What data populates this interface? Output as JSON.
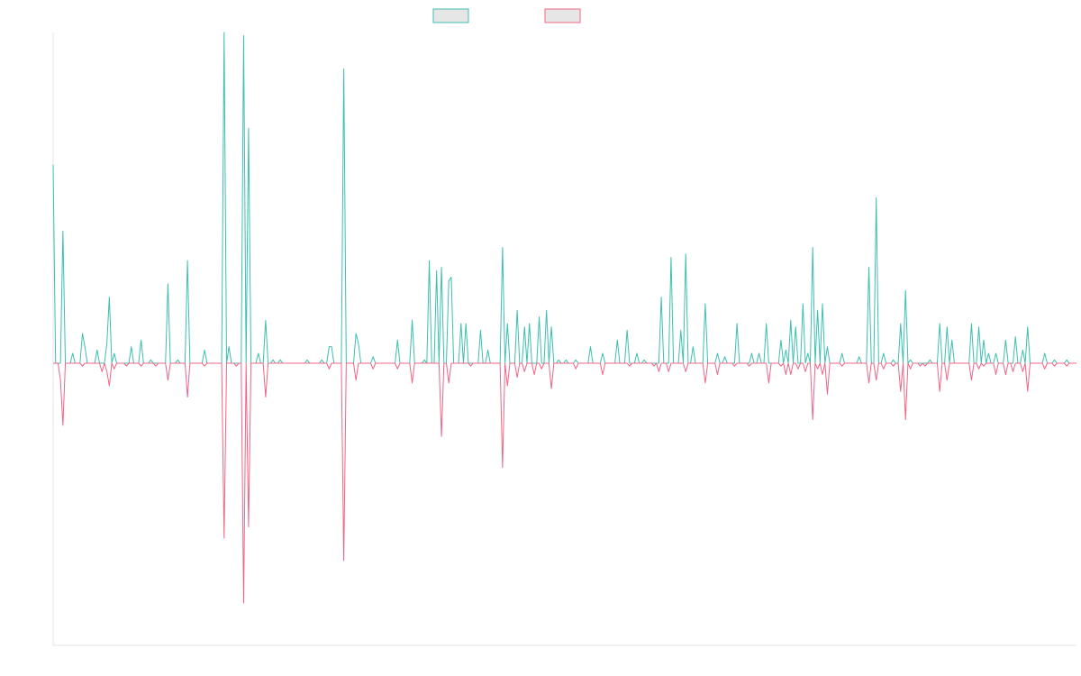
{
  "chart_data": {
    "type": "line",
    "title": "",
    "xlabel": "",
    "ylabel": "",
    "grid": false,
    "legend_position": "top-center",
    "ylim": [
      -100,
      100
    ],
    "x_count": 420,
    "series": [
      {
        "color": "#3dbfb0",
        "fill": "#e6e6e6",
        "spikes": [
          [
            0,
            60
          ],
          [
            4,
            40
          ],
          [
            8,
            3
          ],
          [
            12,
            9
          ],
          [
            13,
            5
          ],
          [
            18,
            4
          ],
          [
            22,
            6
          ],
          [
            23,
            20
          ],
          [
            25,
            3
          ],
          [
            32,
            5
          ],
          [
            36,
            7
          ],
          [
            40,
            1
          ],
          [
            47,
            24
          ],
          [
            51,
            1
          ],
          [
            55,
            31
          ],
          [
            62,
            4
          ],
          [
            70,
            100
          ],
          [
            72,
            5
          ],
          [
            78,
            99
          ],
          [
            80,
            71
          ],
          [
            84,
            3
          ],
          [
            87,
            13
          ],
          [
            90,
            1
          ],
          [
            93,
            1
          ],
          [
            104,
            1
          ],
          [
            110,
            1
          ],
          [
            113,
            5
          ],
          [
            114,
            5
          ],
          [
            119,
            89
          ],
          [
            124,
            9
          ],
          [
            125,
            6
          ],
          [
            131,
            2
          ],
          [
            141,
            7
          ],
          [
            147,
            13
          ],
          [
            152,
            1
          ],
          [
            154,
            31
          ],
          [
            157,
            28
          ],
          [
            159,
            29
          ],
          [
            162,
            25
          ],
          [
            163,
            26
          ],
          [
            167,
            12
          ],
          [
            169,
            12
          ],
          [
            175,
            10
          ],
          [
            178,
            4
          ],
          [
            184,
            35
          ],
          [
            186,
            12
          ],
          [
            190,
            16
          ],
          [
            193,
            11
          ],
          [
            195,
            12
          ],
          [
            199,
            14
          ],
          [
            202,
            16
          ],
          [
            204,
            11
          ],
          [
            207,
            1
          ],
          [
            210,
            1
          ],
          [
            214,
            1
          ],
          [
            220,
            5
          ],
          [
            225,
            3
          ],
          [
            231,
            7
          ],
          [
            235,
            10
          ],
          [
            239,
            3
          ],
          [
            242,
            1
          ],
          [
            249,
            20
          ],
          [
            253,
            32
          ],
          [
            257,
            10
          ],
          [
            259,
            33
          ],
          [
            262,
            5
          ],
          [
            267,
            18
          ],
          [
            272,
            3
          ],
          [
            275,
            2
          ],
          [
            280,
            12
          ],
          [
            286,
            3
          ],
          [
            289,
            3
          ],
          [
            292,
            12
          ],
          [
            298,
            7
          ],
          [
            300,
            4
          ],
          [
            302,
            13
          ],
          [
            304,
            11
          ],
          [
            307,
            18
          ],
          [
            309,
            3
          ],
          [
            311,
            35
          ],
          [
            313,
            16
          ],
          [
            315,
            18
          ],
          [
            317,
            5
          ],
          [
            323,
            3
          ],
          [
            330,
            2
          ],
          [
            334,
            29
          ],
          [
            337,
            50
          ],
          [
            340,
            3
          ],
          [
            344,
            1
          ],
          [
            347,
            12
          ],
          [
            349,
            22
          ],
          [
            351,
            1
          ],
          [
            359,
            1
          ],
          [
            363,
            12
          ],
          [
            366,
            11
          ],
          [
            368,
            7
          ],
          [
            376,
            12
          ],
          [
            379,
            11
          ],
          [
            381,
            7
          ],
          [
            383,
            3
          ],
          [
            386,
            3
          ],
          [
            390,
            7
          ],
          [
            394,
            8
          ],
          [
            397,
            4
          ],
          [
            399,
            11
          ],
          [
            406,
            3
          ],
          [
            410,
            1
          ],
          [
            415,
            1
          ]
        ]
      },
      {
        "color": "#f06587",
        "fill": "#e6e6e6",
        "spikes": [
          [
            3,
            -6
          ],
          [
            4,
            -22
          ],
          [
            12,
            -1
          ],
          [
            20,
            -3
          ],
          [
            22,
            -3
          ],
          [
            23,
            -8
          ],
          [
            25,
            -2
          ],
          [
            30,
            -1
          ],
          [
            36,
            -1
          ],
          [
            42,
            -1
          ],
          [
            47,
            -6
          ],
          [
            55,
            -12
          ],
          [
            62,
            -1
          ],
          [
            70,
            -62
          ],
          [
            75,
            -1
          ],
          [
            78,
            -85
          ],
          [
            80,
            -58
          ],
          [
            87,
            -12
          ],
          [
            113,
            -2
          ],
          [
            119,
            -70
          ],
          [
            124,
            -6
          ],
          [
            131,
            -2
          ],
          [
            141,
            -2
          ],
          [
            147,
            -7
          ],
          [
            159,
            -26
          ],
          [
            162,
            -7
          ],
          [
            171,
            -1
          ],
          [
            184,
            -37
          ],
          [
            186,
            -8
          ],
          [
            190,
            -5
          ],
          [
            193,
            -3
          ],
          [
            197,
            -4
          ],
          [
            200,
            -2
          ],
          [
            204,
            -9
          ],
          [
            214,
            -2
          ],
          [
            225,
            -4
          ],
          [
            236,
            -1
          ],
          [
            246,
            -1
          ],
          [
            248,
            -3
          ],
          [
            252,
            -3
          ],
          [
            259,
            -3
          ],
          [
            267,
            -7
          ],
          [
            272,
            -4
          ],
          [
            279,
            -1
          ],
          [
            285,
            -1
          ],
          [
            293,
            -7
          ],
          [
            298,
            -1
          ],
          [
            300,
            -4
          ],
          [
            302,
            -4
          ],
          [
            305,
            -2
          ],
          [
            308,
            -3
          ],
          [
            311,
            -20
          ],
          [
            313,
            -2
          ],
          [
            315,
            -4
          ],
          [
            317,
            -11
          ],
          [
            323,
            -1
          ],
          [
            334,
            -7
          ],
          [
            337,
            -6
          ],
          [
            340,
            -2
          ],
          [
            344,
            -1
          ],
          [
            347,
            -10
          ],
          [
            349,
            -20
          ],
          [
            351,
            -2
          ],
          [
            355,
            -1
          ],
          [
            357,
            -1
          ],
          [
            363,
            -10
          ],
          [
            366,
            -6
          ],
          [
            376,
            -6
          ],
          [
            379,
            -2
          ],
          [
            381,
            -1
          ],
          [
            386,
            -4
          ],
          [
            390,
            -4
          ],
          [
            393,
            -3
          ],
          [
            397,
            -3
          ],
          [
            399,
            -10
          ],
          [
            406,
            -2
          ],
          [
            410,
            -1
          ],
          [
            415,
            -1
          ]
        ]
      }
    ]
  }
}
